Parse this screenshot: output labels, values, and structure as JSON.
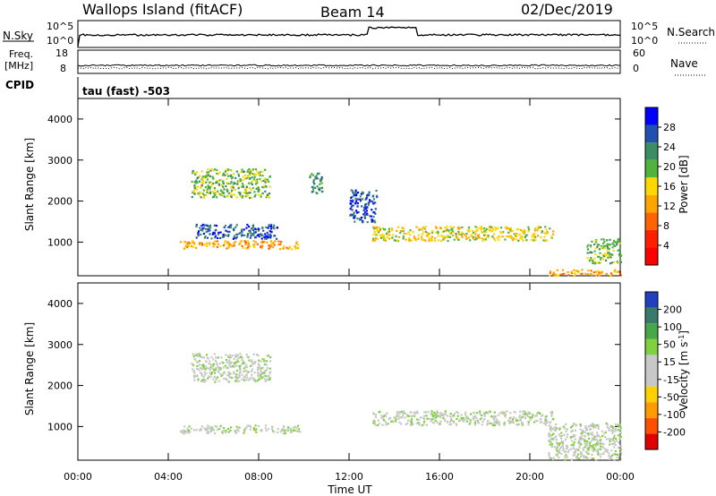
{
  "header": {
    "station": "Wallops Island (fitACF)",
    "beam": "Beam 14",
    "date": "02/Dec/2019"
  },
  "top_panels": {
    "nsky_label": "N.Sky",
    "nsearch_label": "N.Search",
    "noise_ticks": [
      "10^5",
      "10^0"
    ],
    "freq_label_1": "Freq.",
    "freq_label_2": "[MHz]",
    "freq_ticks": [
      "18",
      "8"
    ],
    "nave_label": "Nave",
    "nave_ticks": [
      "60",
      "0"
    ],
    "cpid_label": "CPID",
    "cpid_text": "tau (fast) -503"
  },
  "colors": {
    "power_scale": [
      "#0000ff",
      "#2050b0",
      "#3c8c64",
      "#50b43c",
      "#ffd700",
      "#ffa500",
      "#ff6400",
      "#ff2000",
      "#ff0000"
    ],
    "velocity_scale": [
      "#2040c0",
      "#3a7a6a",
      "#48a848",
      "#80d040",
      "#c8c8c8",
      "#c8c8c8",
      "#ffd000",
      "#ff9a00",
      "#ff5000",
      "#e00000"
    ]
  },
  "chart_data": [
    {
      "type": "heatmap",
      "name": "power",
      "ylabel": "Slant Range [km]",
      "xlabel": "",
      "ylim": [
        180,
        4500
      ],
      "yticks": [
        "1000",
        "2000",
        "3000",
        "4000"
      ],
      "ytick_values": [
        1000,
        2000,
        3000,
        4000
      ],
      "colorbar_label": "Power [dB]",
      "colorbar_ticks": [
        "28",
        "24",
        "20",
        "16",
        "12",
        "8",
        "4"
      ],
      "regions": [
        {
          "x0": 5.2,
          "x1": 8.8,
          "y0": 1100,
          "y1": 1450,
          "level": 1
        },
        {
          "x0": 4.5,
          "x1": 9.8,
          "y0": 850,
          "y1": 1050,
          "level": 5
        },
        {
          "x0": 5.0,
          "x1": 8.5,
          "y0": 2100,
          "y1": 2800,
          "level": 3
        },
        {
          "x0": 10.2,
          "x1": 10.8,
          "y0": 2200,
          "y1": 2700,
          "level": 2
        },
        {
          "x0": 12.0,
          "x1": 13.2,
          "y0": 1500,
          "y1": 2300,
          "level": 1
        },
        {
          "x0": 13.0,
          "x1": 21.0,
          "y0": 1050,
          "y1": 1400,
          "level": 4
        },
        {
          "x0": 20.8,
          "x1": 24.0,
          "y0": 200,
          "y1": 350,
          "level": 5
        },
        {
          "x0": 22.5,
          "x1": 24.0,
          "y0": 500,
          "y1": 1100,
          "level": 3
        }
      ]
    },
    {
      "type": "heatmap",
      "name": "velocity",
      "ylabel": "Slant Range [km]",
      "xlabel": "Time UT",
      "ylim": [
        180,
        4500
      ],
      "xlim": [
        0,
        24
      ],
      "xticks": [
        "00:00",
        "04:00",
        "08:00",
        "12:00",
        "16:00",
        "20:00",
        "00:00"
      ],
      "xtick_values": [
        0,
        4,
        8,
        12,
        16,
        20,
        24
      ],
      "yticks": [
        "1000",
        "2000",
        "3000",
        "4000"
      ],
      "ytick_values": [
        1000,
        2000,
        3000,
        4000
      ],
      "colorbar_label": "Velocity [m s^-1]",
      "colorbar_ticks": [
        "200",
        "100",
        "50",
        "15",
        "-15",
        "-50",
        "-100",
        "-200"
      ],
      "regions": [
        {
          "x0": 4.5,
          "x1": 9.8,
          "y0": 850,
          "y1": 1050,
          "level": 4
        },
        {
          "x0": 5.0,
          "x1": 8.5,
          "y0": 2100,
          "y1": 2800,
          "level": 4
        },
        {
          "x0": 13.0,
          "x1": 21.0,
          "y0": 1050,
          "y1": 1400,
          "level": 4
        },
        {
          "x0": 20.8,
          "x1": 24.0,
          "y0": 200,
          "y1": 1100,
          "level": 4
        }
      ]
    }
  ]
}
